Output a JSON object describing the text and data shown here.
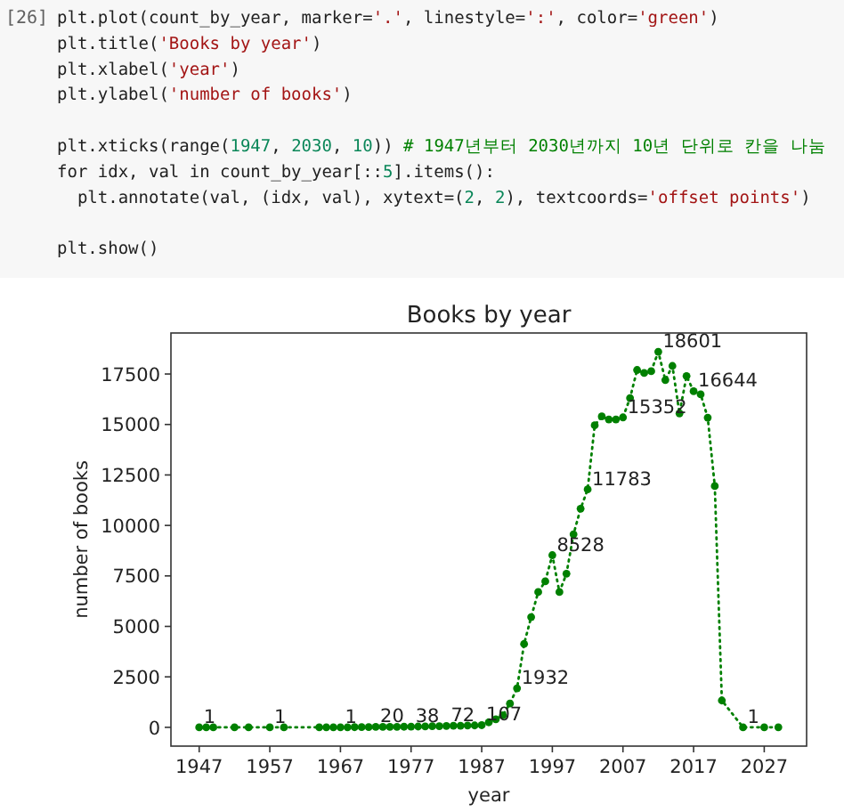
{
  "chart_data": {
    "type": "line",
    "title": "Books by year",
    "xlabel": "year",
    "ylabel": "number of books",
    "annotations": [
      "[26]",
      "plt.plot(count_by_year, marker='.', linestyle=':', color='green')\nplt.title('Books by year')\nplt.xlabel('year')\nplt.ylabel('number of books')\n\nplt.xticks(range(1947, 2030, 10)) # 1947년부터 2030년까지 10년 단위로 칸을 나눔\nfor idx, val in count_by_year[::5].items():\n  plt.annotate(val, (idx, val), xytext=(2, 2), textcoords='offset points')\n\nplt.show()"
    ],
    "x": [
      1947,
      1948,
      1949,
      1952,
      1954,
      1957,
      1959,
      1964,
      1965,
      1966,
      1967,
      1968,
      1969,
      1970,
      1971,
      1972,
      1973,
      1974,
      1975,
      1976,
      1977,
      1978,
      1979,
      1980,
      1981,
      1982,
      1983,
      1984,
      1985,
      1986,
      1987,
      1988,
      1989,
      1990,
      1991,
      1992,
      1993,
      1994,
      1995,
      1996,
      1997,
      1998,
      1999,
      2000,
      2001,
      2002,
      2003,
      2004,
      2005,
      2006,
      2007,
      2008,
      2009,
      2010,
      2011,
      2012,
      2013,
      2014,
      2015,
      2016,
      2017,
      2018,
      2019,
      2020,
      2021,
      2024,
      2027,
      2029
    ],
    "series": [
      {
        "color": "#008000",
        "values": [
          1,
          1,
          1,
          1,
          1,
          1,
          1,
          2,
          3,
          2,
          1,
          5,
          8,
          10,
          15,
          20,
          22,
          25,
          28,
          30,
          38,
          40,
          45,
          55,
          60,
          72,
          75,
          80,
          90,
          95,
          107,
          250,
          400,
          600,
          1180,
          1932,
          4130,
          5460,
          6700,
          7230,
          8528,
          6700,
          7610,
          9560,
          10830,
          11783,
          14960,
          15400,
          15250,
          15250,
          15352,
          16310,
          17700,
          17550,
          17640,
          18601,
          17200,
          17900,
          15550,
          17400,
          16644,
          16490,
          15340,
          11950,
          1330,
          1,
          5,
          3
        ],
        "value_labels": [
          "1",
          null,
          null,
          null,
          null,
          "1",
          null,
          null,
          null,
          null,
          "1",
          null,
          null,
          null,
          null,
          "20",
          null,
          null,
          null,
          null,
          "38",
          null,
          null,
          null,
          null,
          "72",
          null,
          null,
          null,
          null,
          "107",
          null,
          null,
          null,
          null,
          "1932",
          null,
          null,
          null,
          null,
          "8528",
          null,
          null,
          null,
          null,
          "11783",
          null,
          null,
          null,
          null,
          "15352",
          null,
          null,
          null,
          null,
          "18601",
          null,
          null,
          null,
          null,
          "16644",
          null,
          null,
          null,
          null,
          "1",
          null,
          null
        ]
      }
    ],
    "xlim": [
      1943,
      2033
    ],
    "xticks": [
      1947,
      1957,
      1967,
      1977,
      1987,
      1997,
      2007,
      2017,
      2027
    ],
    "ylim": [
      -930,
      19531
    ],
    "yticks": [
      0,
      2500,
      5000,
      7500,
      10000,
      12500,
      15000,
      17500
    ],
    "marker": "circle",
    "line_style": "dotted",
    "grid": false
  }
}
